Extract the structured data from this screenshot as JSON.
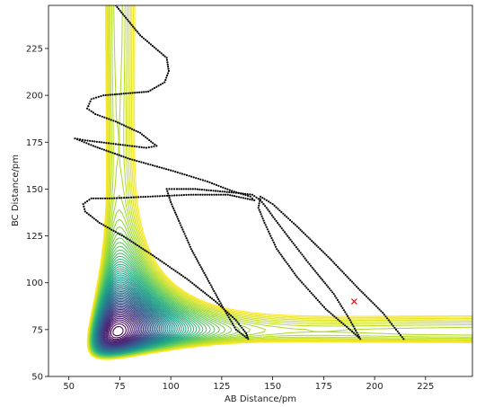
{
  "chart_data": {
    "type": "contour",
    "title": "",
    "xlabel": "AB Distance/pm",
    "ylabel": "BC Distance/pm",
    "xlim": [
      40,
      248
    ],
    "ylim": [
      50,
      248
    ],
    "x_ticks": [
      50,
      75,
      100,
      125,
      150,
      175,
      200,
      225
    ],
    "y_ticks": [
      50,
      75,
      100,
      125,
      150,
      175,
      200,
      225
    ],
    "grid": false,
    "legend": "none",
    "colormap": "viridis",
    "contour_levels": 60,
    "trajectory_color": "#000000",
    "trajectory": [
      [
        73,
        248
      ],
      [
        85,
        232
      ],
      [
        98,
        220
      ],
      [
        99,
        213
      ],
      [
        97,
        207
      ],
      [
        89,
        202
      ],
      [
        78,
        201
      ],
      [
        67,
        200
      ],
      [
        61,
        198
      ],
      [
        59,
        193
      ],
      [
        63,
        190
      ],
      [
        73,
        186
      ],
      [
        85,
        180
      ],
      [
        93,
        173
      ],
      [
        88,
        172
      ],
      [
        73,
        174
      ],
      [
        58,
        176
      ],
      [
        53,
        177
      ],
      [
        62,
        173
      ],
      [
        80,
        166
      ],
      [
        100,
        160
      ],
      [
        118,
        154
      ],
      [
        130,
        149
      ],
      [
        139,
        146
      ],
      [
        141,
        144
      ],
      [
        128,
        147
      ],
      [
        110,
        147
      ],
      [
        90,
        146
      ],
      [
        70,
        145
      ],
      [
        61,
        145
      ],
      [
        57,
        142
      ],
      [
        58,
        138
      ],
      [
        65,
        132
      ],
      [
        78,
        124
      ],
      [
        92,
        114
      ],
      [
        108,
        102
      ],
      [
        122,
        90
      ],
      [
        132,
        80
      ],
      [
        137,
        73
      ],
      [
        138,
        70
      ],
      [
        132,
        75
      ],
      [
        125,
        88
      ],
      [
        118,
        102
      ],
      [
        110,
        118
      ],
      [
        104,
        133
      ],
      [
        100,
        143
      ],
      [
        98,
        150
      ],
      [
        103,
        150
      ],
      [
        112,
        150
      ],
      [
        122,
        149
      ],
      [
        132,
        148
      ],
      [
        140,
        147
      ],
      [
        144,
        144
      ],
      [
        147,
        140
      ],
      [
        151,
        134
      ],
      [
        158,
        124
      ],
      [
        168,
        110
      ],
      [
        180,
        94
      ],
      [
        188,
        80
      ],
      [
        193,
        70
      ],
      [
        189,
        74
      ],
      [
        176,
        86
      ],
      [
        162,
        103
      ],
      [
        152,
        118
      ],
      [
        146,
        132
      ],
      [
        143,
        140
      ],
      [
        144,
        146
      ],
      [
        150,
        142
      ],
      [
        162,
        130
      ],
      [
        178,
        113
      ],
      [
        192,
        97
      ],
      [
        204,
        84
      ],
      [
        212,
        73
      ],
      [
        215,
        69
      ]
    ],
    "marker": {
      "x": 190,
      "y": 90,
      "symbol": "x",
      "color": "#ff0000"
    }
  }
}
